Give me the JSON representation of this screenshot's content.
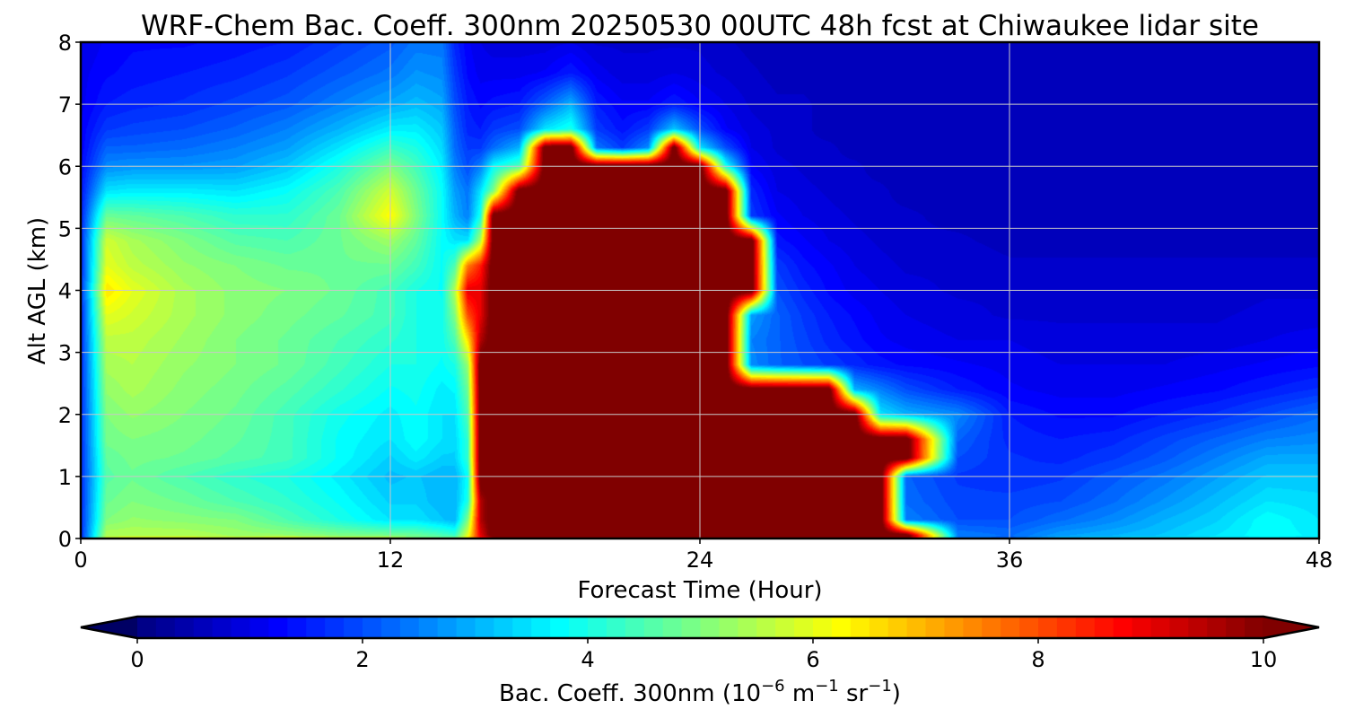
{
  "chart_data": {
    "type": "heatmap",
    "title": "WRF-Chem Bac. Coeff. 300nm  20250530 00UTC 48h fcst at Chiwaukee lidar site",
    "xlabel": "Forecast Time (Hour)",
    "ylabel": "Alt AGL (km)",
    "xlim": [
      0,
      48
    ],
    "ylim": [
      0,
      8
    ],
    "x_ticks": [
      "0",
      "12",
      "24",
      "36",
      "48"
    ],
    "y_ticks": [
      "0",
      "1",
      "2",
      "3",
      "4",
      "5",
      "6",
      "7",
      "8"
    ],
    "grid": true,
    "colormap": "jet",
    "colorbar": {
      "label_main": "Bac. Coeff. 300nm  (10",
      "exp1": "−6",
      "label_mid": " m",
      "exp2": "−1",
      "label_mid2": " sr",
      "exp3": "−1",
      "label_end": ")",
      "ticks": [
        "0",
        "2",
        "4",
        "6",
        "8",
        "10"
      ],
      "range": [
        0,
        10
      ],
      "extend": "both",
      "orientation": "horizontal",
      "placement": "bottom"
    },
    "x_hours": [
      0,
      1,
      2,
      4,
      6,
      8,
      10,
      12,
      13,
      14,
      14.5,
      15,
      15.5,
      16,
      17,
      18,
      19,
      20,
      21,
      22,
      23,
      24,
      25,
      26,
      27,
      28,
      29,
      30,
      31,
      32,
      34,
      36,
      38,
      40,
      42,
      44,
      46,
      48
    ],
    "y_km": [
      0,
      0.05,
      0.3,
      0.6,
      1,
      1.3,
      1.6,
      2,
      2.4,
      2.8,
      3.2,
      3.6,
      4,
      4.4,
      4.8,
      5.2,
      5.6,
      6,
      6.3,
      6.6,
      7,
      7.5,
      8
    ],
    "values": [
      [
        1.6,
        6.0,
        6.2,
        6.3,
        6.0,
        6.5,
        6.0,
        6.0,
        5.0,
        5.0,
        5.0,
        6.5,
        8.5,
        9.5,
        10.5,
        10.5,
        10.5,
        10.5,
        10.5,
        10.5,
        10.5,
        10.5,
        10.5,
        10.5,
        10.5,
        10.5,
        10.5,
        10.5,
        10.5,
        10.5,
        2.5,
        2.2,
        3.2,
        3.5,
        3.6,
        3.6,
        3.6,
        3.6
      ],
      [
        1.6,
        5.5,
        5.5,
        5.5,
        5.3,
        5.2,
        5.0,
        4.9,
        4.8,
        4.5,
        4.3,
        6.0,
        9.0,
        10.5,
        10.5,
        10.5,
        10.5,
        10.5,
        10.5,
        10.5,
        10.5,
        10.5,
        10.5,
        10.5,
        10.5,
        10.5,
        10.5,
        10.5,
        10.5,
        10.5,
        2.5,
        2.3,
        2.8,
        3.0,
        3.2,
        3.5,
        3.8,
        3.6
      ],
      [
        1.6,
        5.0,
        5.2,
        5.1,
        5.0,
        4.5,
        4.0,
        3.5,
        3.5,
        3.2,
        3.0,
        5.0,
        9.5,
        10.5,
        10.5,
        10.5,
        10.5,
        10.5,
        10.5,
        10.5,
        10.5,
        10.5,
        10.5,
        10.5,
        10.5,
        10.5,
        10.5,
        10.5,
        10.5,
        2.5,
        2.0,
        2.0,
        2.3,
        2.6,
        3.0,
        3.3,
        3.8,
        3.5
      ],
      [
        1.6,
        4.8,
        5.0,
        4.8,
        4.5,
        4.2,
        3.8,
        3.3,
        3.3,
        3.0,
        3.0,
        4.0,
        9.5,
        10.5,
        10.5,
        10.5,
        10.5,
        10.5,
        10.5,
        10.5,
        10.5,
        10.5,
        10.5,
        10.5,
        10.5,
        10.5,
        10.5,
        10.5,
        10.5,
        2.3,
        1.9,
        1.9,
        2.0,
        2.3,
        2.7,
        3.1,
        3.5,
        3.4
      ],
      [
        1.6,
        4.6,
        4.8,
        4.5,
        4.2,
        4.0,
        3.6,
        3.1,
        3.2,
        3.0,
        3.0,
        3.8,
        10.5,
        10.5,
        10.5,
        10.5,
        10.5,
        10.5,
        10.5,
        10.5,
        10.5,
        10.5,
        10.5,
        10.5,
        10.5,
        10.5,
        10.5,
        10.5,
        10.5,
        2.2,
        1.8,
        1.7,
        1.8,
        2.1,
        2.4,
        2.8,
        3.2,
        3.2
      ],
      [
        1.6,
        4.7,
        4.9,
        4.8,
        4.6,
        4.4,
        3.8,
        3.3,
        3.6,
        3.3,
        3.3,
        4.2,
        10.5,
        10.5,
        10.5,
        10.5,
        10.5,
        10.5,
        10.5,
        10.5,
        10.5,
        10.5,
        10.5,
        10.5,
        10.5,
        10.5,
        10.5,
        10.5,
        10.5,
        10.5,
        2.0,
        1.7,
        1.6,
        1.8,
        2.1,
        2.5,
        2.9,
        2.9
      ],
      [
        1.6,
        4.9,
        5.0,
        4.9,
        4.7,
        4.4,
        3.8,
        3.5,
        3.8,
        3.5,
        3.4,
        4.2,
        10.5,
        10.5,
        10.5,
        10.5,
        10.5,
        10.5,
        10.5,
        10.5,
        10.5,
        10.5,
        10.5,
        10.5,
        10.5,
        10.5,
        10.5,
        10.5,
        10.5,
        10.5,
        2.2,
        1.6,
        1.5,
        1.6,
        1.9,
        2.2,
        2.5,
        2.6
      ],
      [
        1.6,
        5.0,
        5.2,
        5.0,
        4.8,
        4.4,
        3.9,
        3.6,
        3.8,
        3.5,
        3.5,
        4.5,
        10.5,
        10.5,
        10.5,
        10.5,
        10.5,
        10.5,
        10.5,
        10.5,
        10.5,
        10.5,
        10.5,
        10.5,
        10.5,
        10.5,
        10.5,
        10.5,
        3.5,
        3.0,
        2.6,
        1.5,
        1.3,
        1.3,
        1.5,
        1.7,
        2.0,
        2.3
      ],
      [
        1.6,
        5.2,
        5.4,
        5.1,
        4.9,
        4.6,
        4.2,
        3.8,
        3.9,
        3.6,
        3.7,
        4.8,
        10.5,
        10.5,
        10.5,
        10.5,
        10.5,
        10.5,
        10.5,
        10.5,
        10.5,
        10.5,
        10.5,
        10.5,
        10.5,
        10.5,
        10.5,
        3.0,
        2.5,
        2.0,
        1.5,
        1.2,
        1.1,
        1.1,
        1.2,
        1.3,
        1.5,
        1.7
      ],
      [
        1.6,
        5.4,
        5.5,
        5.2,
        5.0,
        4.8,
        4.4,
        4.0,
        4.0,
        3.8,
        4.0,
        5.2,
        10.5,
        10.5,
        10.5,
        10.5,
        10.5,
        10.5,
        10.5,
        10.5,
        10.5,
        10.5,
        10.5,
        2.6,
        2.2,
        2.0,
        1.8,
        1.6,
        1.4,
        1.3,
        1.2,
        1.1,
        1.0,
        1.0,
        1.0,
        1.1,
        1.2,
        1.3
      ],
      [
        1.6,
        5.6,
        5.6,
        5.3,
        5.0,
        4.8,
        4.5,
        4.2,
        4.0,
        3.9,
        4.5,
        6.5,
        9.5,
        10.5,
        10.5,
        10.5,
        10.5,
        10.5,
        10.5,
        10.5,
        10.5,
        10.5,
        10.5,
        2.5,
        2.2,
        1.9,
        1.6,
        1.4,
        1.2,
        1.1,
        1.0,
        1.0,
        0.9,
        0.9,
        0.9,
        0.9,
        1.0,
        1.1
      ],
      [
        1.6,
        6.0,
        5.8,
        5.4,
        5.1,
        4.9,
        4.7,
        4.4,
        4.0,
        3.9,
        5.0,
        8.0,
        9.0,
        10.5,
        10.5,
        10.5,
        10.5,
        10.5,
        10.5,
        10.5,
        10.5,
        10.5,
        10.5,
        2.8,
        2.2,
        1.8,
        1.5,
        1.3,
        1.1,
        1.0,
        0.9,
        0.8,
        0.8,
        0.8,
        0.8,
        0.8,
        0.9,
        0.9
      ],
      [
        1.6,
        6.5,
        6.0,
        5.4,
        5.1,
        5.0,
        4.8,
        4.4,
        4.0,
        3.8,
        5.5,
        9.0,
        9.0,
        10.5,
        10.5,
        10.5,
        10.5,
        10.5,
        10.5,
        10.5,
        10.5,
        10.5,
        10.5,
        10.5,
        2.0,
        1.6,
        1.3,
        1.1,
        1.0,
        0.9,
        0.8,
        0.8,
        0.7,
        0.7,
        0.7,
        0.7,
        0.8,
        0.8
      ],
      [
        1.6,
        6.0,
        5.6,
        5.2,
        5.0,
        4.8,
        4.8,
        4.8,
        4.4,
        3.8,
        4.5,
        7.5,
        8.5,
        10.5,
        10.5,
        10.5,
        10.5,
        10.5,
        10.5,
        10.5,
        10.5,
        10.5,
        10.5,
        10.5,
        1.8,
        1.4,
        1.2,
        1.0,
        0.9,
        0.8,
        0.8,
        0.7,
        0.7,
        0.7,
        0.7,
        0.7,
        0.7,
        0.7
      ],
      [
        1.6,
        5.8,
        5.4,
        5.0,
        4.6,
        4.5,
        4.8,
        5.3,
        4.7,
        3.8,
        3.5,
        3.5,
        5.5,
        10.5,
        10.5,
        10.5,
        10.5,
        10.5,
        10.5,
        10.5,
        10.5,
        10.5,
        10.5,
        10.5,
        1.4,
        1.2,
        1.0,
        0.9,
        0.8,
        0.7,
        0.7,
        0.6,
        0.6,
        0.6,
        0.6,
        0.6,
        0.6,
        0.6
      ],
      [
        1.5,
        4.8,
        4.7,
        4.5,
        4.2,
        4.2,
        4.8,
        6.3,
        5.0,
        3.8,
        3.0,
        2.5,
        4.0,
        10.5,
        10.5,
        10.5,
        10.5,
        10.5,
        10.5,
        10.5,
        10.5,
        10.5,
        10.5,
        1.8,
        1.2,
        1.0,
        0.9,
        0.8,
        0.7,
        0.7,
        0.6,
        0.6,
        0.6,
        0.6,
        0.6,
        0.6,
        0.6,
        0.6
      ],
      [
        1.4,
        3.5,
        3.6,
        3.6,
        3.5,
        3.8,
        4.5,
        5.8,
        4.8,
        3.8,
        2.8,
        2.4,
        3.5,
        5.0,
        10.5,
        10.5,
        10.5,
        10.5,
        10.5,
        10.5,
        10.5,
        10.5,
        10.5,
        1.6,
        1.0,
        0.9,
        0.8,
        0.7,
        0.7,
        0.6,
        0.6,
        0.6,
        0.6,
        0.6,
        0.6,
        0.6,
        0.6,
        0.6
      ],
      [
        1.3,
        2.6,
        2.7,
        2.7,
        2.8,
        3.2,
        4.0,
        5.0,
        4.4,
        3.6,
        2.5,
        2.0,
        2.5,
        3.8,
        4.5,
        10.5,
        10.5,
        10.5,
        10.5,
        10.5,
        10.5,
        10.5,
        4.0,
        1.2,
        0.9,
        0.8,
        0.7,
        0.7,
        0.6,
        0.6,
        0.6,
        0.6,
        0.6,
        0.6,
        0.6,
        0.6,
        0.6,
        0.6
      ],
      [
        1.2,
        2.2,
        2.2,
        2.3,
        2.5,
        2.8,
        3.5,
        4.3,
        4.0,
        3.4,
        2.3,
        1.8,
        1.8,
        2.3,
        3.0,
        10.5,
        10.5,
        2.4,
        1.8,
        2.6,
        10.5,
        3.5,
        2.0,
        1.0,
        0.8,
        0.7,
        0.7,
        0.6,
        0.6,
        0.6,
        0.6,
        0.6,
        0.6,
        0.6,
        0.6,
        0.6,
        0.6,
        0.6
      ],
      [
        1.2,
        1.8,
        1.9,
        2.0,
        2.2,
        2.5,
        3.0,
        3.6,
        3.6,
        3.2,
        2.2,
        1.6,
        1.5,
        1.8,
        2.0,
        3.5,
        4.0,
        1.8,
        1.4,
        1.8,
        3.2,
        2.0,
        1.2,
        0.9,
        0.8,
        0.7,
        0.6,
        0.6,
        0.6,
        0.6,
        0.6,
        0.6,
        0.6,
        0.6,
        0.6,
        0.6,
        0.6,
        0.6
      ],
      [
        1.1,
        1.5,
        1.6,
        1.7,
        1.9,
        2.1,
        2.5,
        2.9,
        3.1,
        2.9,
        2.0,
        1.5,
        1.3,
        1.4,
        1.5,
        2.2,
        3.0,
        1.5,
        1.2,
        1.2,
        1.5,
        1.2,
        1.0,
        0.8,
        0.7,
        0.7,
        0.6,
        0.6,
        0.6,
        0.6,
        0.6,
        0.6,
        0.6,
        0.6,
        0.6,
        0.6,
        0.6,
        0.6
      ],
      [
        1.1,
        1.3,
        1.4,
        1.5,
        1.6,
        1.8,
        2.1,
        2.4,
        2.7,
        2.6,
        1.8,
        1.3,
        1.1,
        1.1,
        1.1,
        1.2,
        1.5,
        1.1,
        0.9,
        0.9,
        1.0,
        0.9,
        0.8,
        0.7,
        0.6,
        0.6,
        0.6,
        0.6,
        0.6,
        0.6,
        0.6,
        0.6,
        0.6,
        0.6,
        0.6,
        0.6,
        0.6,
        0.6
      ],
      [
        1.0,
        1.2,
        1.3,
        1.3,
        1.4,
        1.5,
        1.8,
        2.1,
        2.4,
        2.4,
        1.6,
        1.2,
        1.0,
        0.9,
        0.9,
        0.9,
        1.0,
        0.8,
        0.8,
        0.8,
        0.8,
        0.8,
        0.7,
        0.6,
        0.6,
        0.6,
        0.6,
        0.6,
        0.6,
        0.6,
        0.6,
        0.6,
        0.6,
        0.6,
        0.6,
        0.6,
        0.6,
        0.6
      ]
    ]
  }
}
